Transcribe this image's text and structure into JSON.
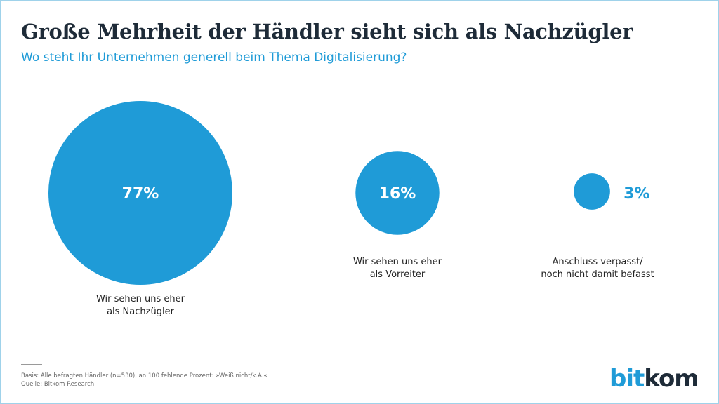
{
  "title": "Große Mehrheit der Händler sieht sich als Nachzügler",
  "subtitle": "Wo steht Ihr Unternehmen generell beim Thema Digitalisierung?",
  "chart_data": {
    "type": "bubble",
    "title": "Große Mehrheit der Händler sieht sich als Nachzügler",
    "subtitle": "Wo steht Ihr Unternehmen generell beim Thema Digitalisierung?",
    "unit": "%",
    "categories": [
      "Wir sehen uns eher\nals Nachzügler",
      "Wir sehen uns eher\nals Vorreiter",
      "Anschluss verpasst/\nnoch nicht damit befasst"
    ],
    "values": [
      77,
      16,
      3
    ],
    "value_labels": [
      "77%",
      "16%",
      "3%"
    ],
    "color": "#1f9bd7"
  },
  "footnote": {
    "basis": "Basis: Alle befragten Händler (n=530), an 100 fehlende Prozent: »Weiß nicht/k.A.«",
    "source": "Quelle: Bitkom Research"
  },
  "logo": {
    "part1": "bit",
    "part2": "kom"
  }
}
